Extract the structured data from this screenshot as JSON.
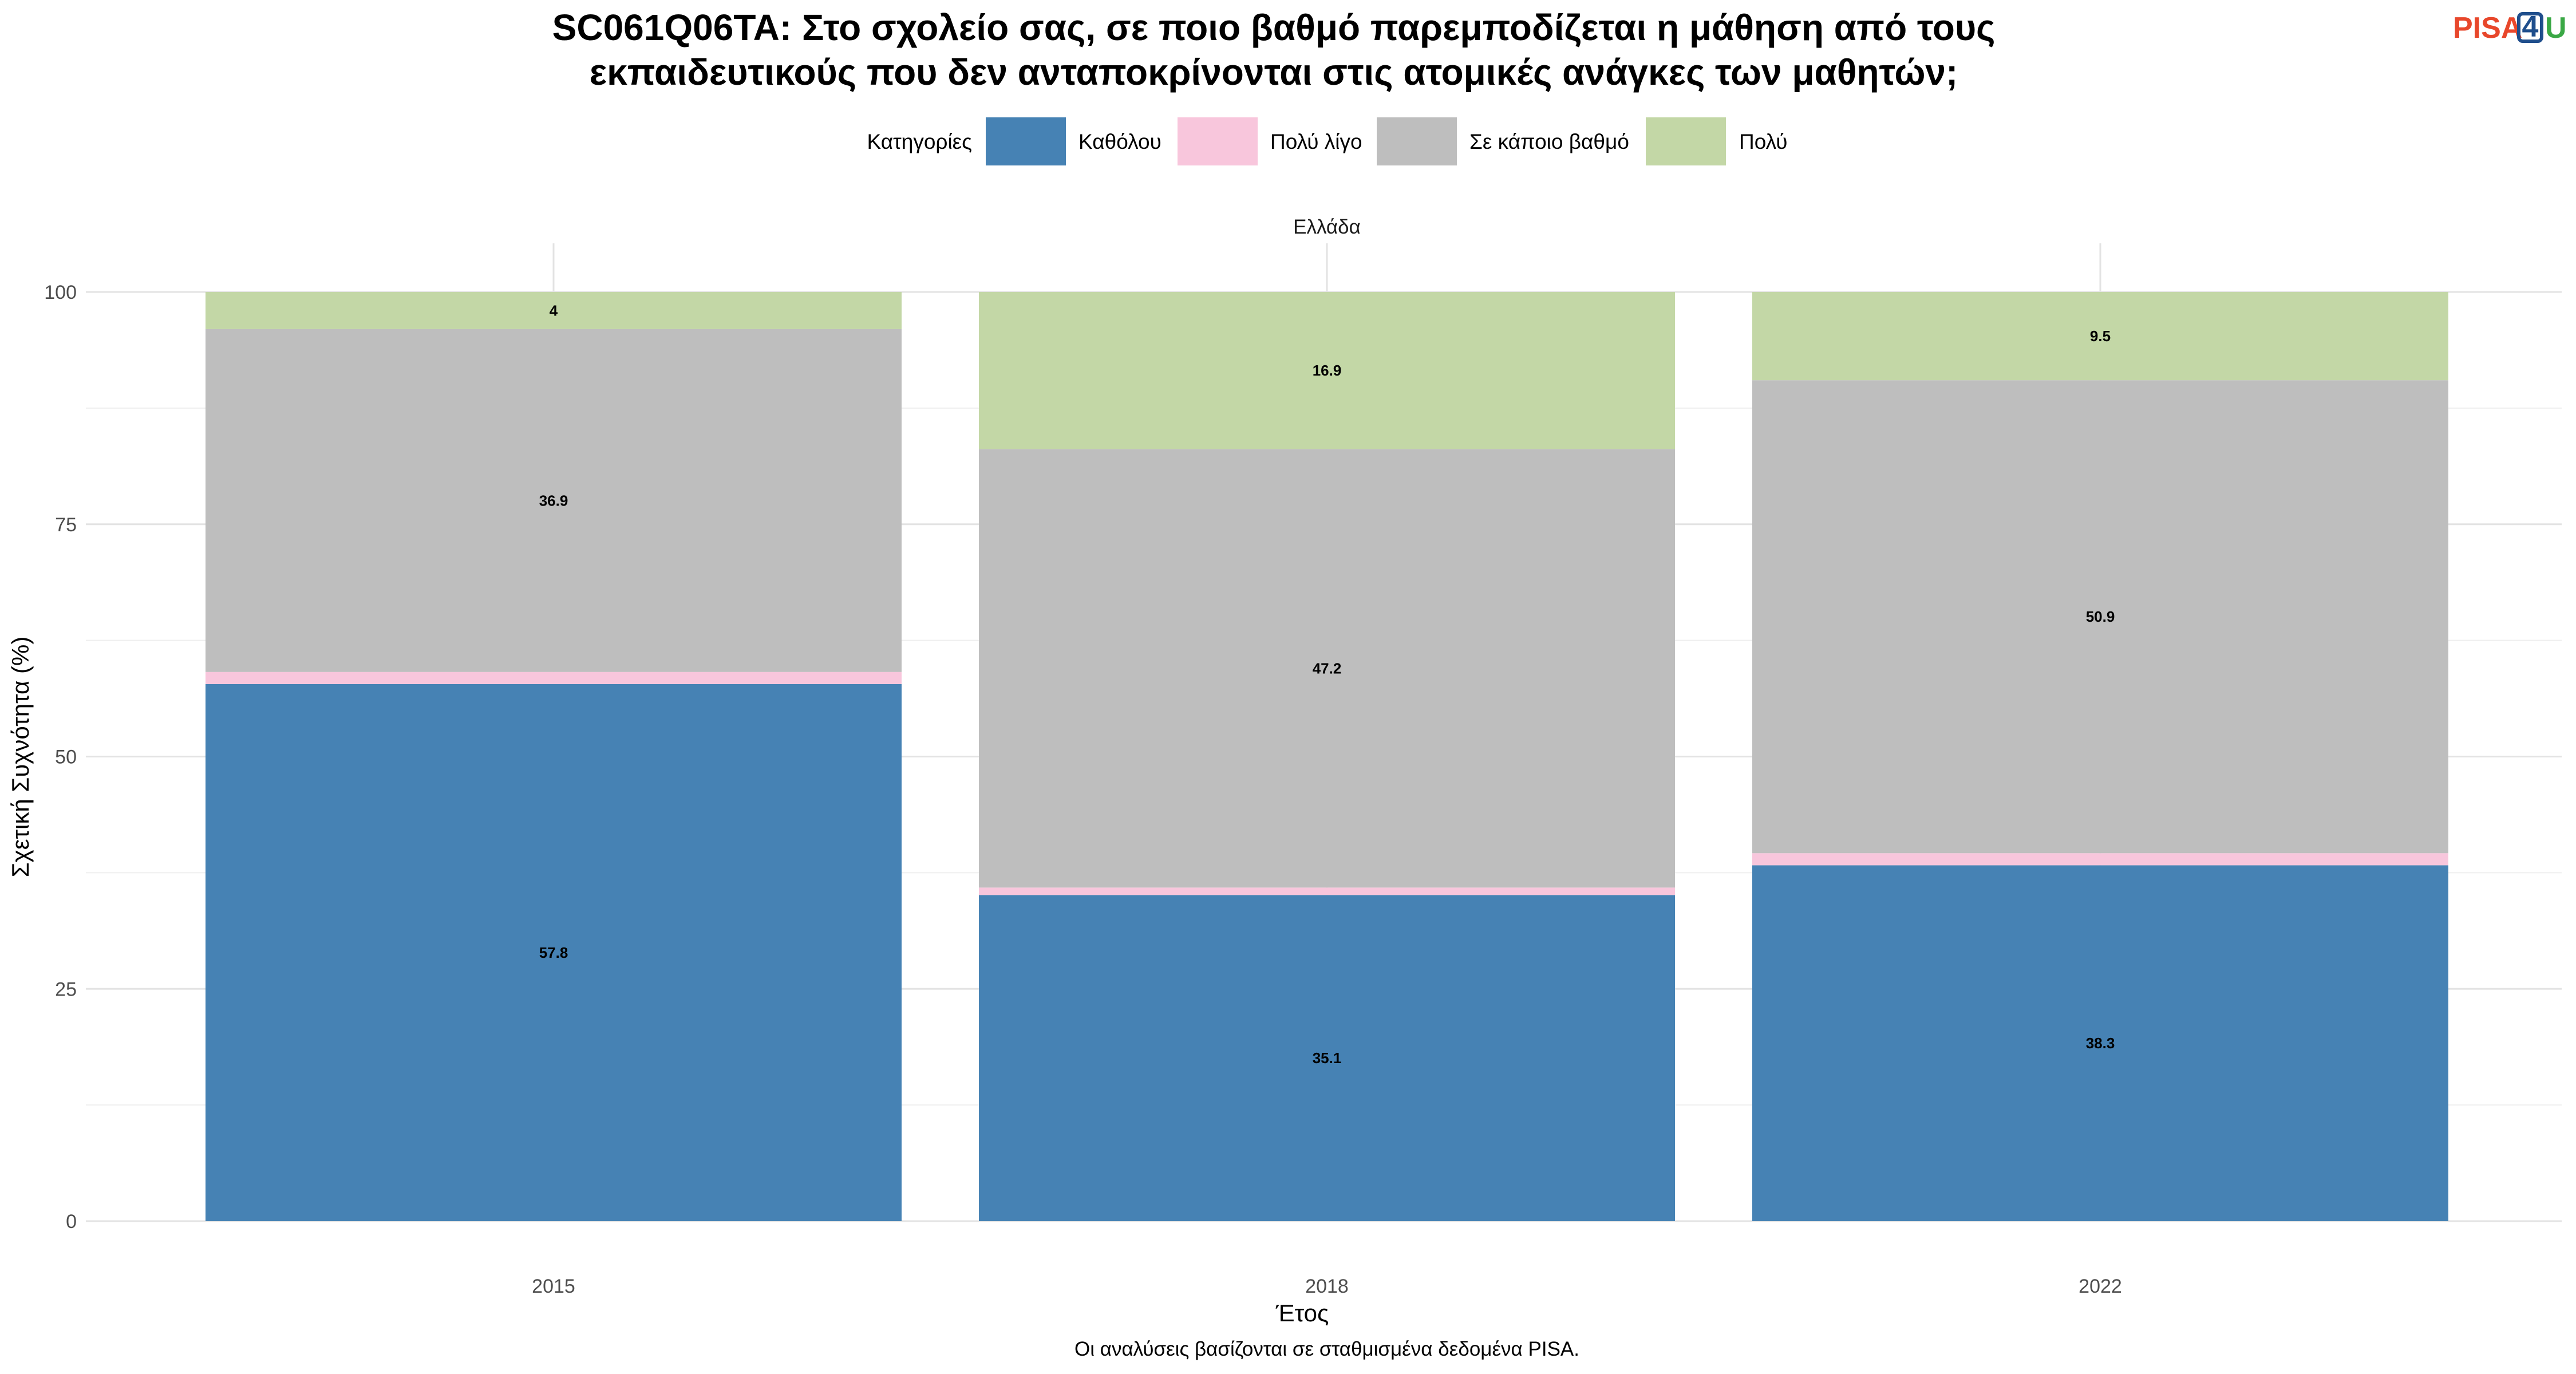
{
  "title_lines": [
    "SC061Q06TA: Στο σχολείο σας, σε ποιο βαθμό παρεμποδίζεται η μάθηση από τους",
    "εκπαιδευτικούς που δεν ανταποκρίνονται στις ατομικές ανάγκες των μαθητών;"
  ],
  "logo": {
    "text": "PISA4U",
    "pisa": "PISA",
    "four": "4",
    "u": "U",
    "pisa_color": "#e8472b",
    "four_color": "#1f4e8c",
    "u_color": "#3aa845"
  },
  "legend": {
    "title": "Κατηγορίες",
    "items": [
      {
        "label": "Καθόλου",
        "color": "#4682b4"
      },
      {
        "label": "Πολύ λίγο",
        "color": "#f8c6dc"
      },
      {
        "label": "Σε κάποιο βαθμό",
        "color": "#bebebe"
      },
      {
        "label": "Πολύ",
        "color": "#c3d7a6"
      }
    ]
  },
  "caption": "Οι αναλύσεις βασίζονται σε σταθμισμένα δεδομένα PISA.",
  "chart_data": {
    "type": "bar",
    "stacked": true,
    "facet": "Ελλάδα",
    "categories": [
      "2015",
      "2018",
      "2022"
    ],
    "xlabel": "Έτος",
    "ylabel": "Σχετική Συχνότητα (%)",
    "ylim": [
      0,
      100
    ],
    "yticks": [
      0,
      25,
      50,
      75,
      100
    ],
    "grid": true,
    "legend_position": "top",
    "series": [
      {
        "name": "Καθόλου",
        "color": "#4682b4",
        "values": [
          57.8,
          35.1,
          38.3
        ],
        "labels": [
          "57.8",
          "35.1",
          "38.3"
        ]
      },
      {
        "name": "Πολύ λίγο",
        "color": "#f8c6dc",
        "values": [
          1.3,
          0.8,
          1.3
        ],
        "labels": [
          "",
          "",
          ""
        ]
      },
      {
        "name": "Σε κάποιο βαθμό",
        "color": "#bebebe",
        "values": [
          36.9,
          47.2,
          50.9
        ],
        "labels": [
          "36.9",
          "47.2",
          "50.9"
        ]
      },
      {
        "name": "Πολύ",
        "color": "#c3d7a6",
        "values": [
          4,
          16.9,
          9.5
        ],
        "labels": [
          "4",
          "16.9",
          "9.5"
        ]
      }
    ]
  }
}
